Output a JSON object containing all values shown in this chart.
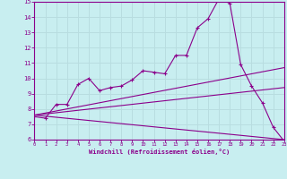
{
  "xlabel": "Windchill (Refroidissement éolien,°C)",
  "xlim": [
    0,
    23
  ],
  "ylim": [
    6,
    15
  ],
  "xticks": [
    0,
    1,
    2,
    3,
    4,
    5,
    6,
    7,
    8,
    9,
    10,
    11,
    12,
    13,
    14,
    15,
    16,
    17,
    18,
    19,
    20,
    21,
    22,
    23
  ],
  "yticks": [
    6,
    7,
    8,
    9,
    10,
    11,
    12,
    13,
    14,
    15
  ],
  "background_color": "#c8eef0",
  "line_color": "#8b008b",
  "grid_color": "#b8dde0",
  "lines": [
    {
      "x": [
        0,
        1,
        2,
        3,
        4,
        5,
        6,
        7,
        8,
        9,
        10,
        11,
        12,
        13,
        14,
        15,
        16,
        17,
        18,
        19,
        20,
        21,
        22,
        23
      ],
      "y": [
        7.5,
        7.4,
        8.3,
        8.3,
        9.6,
        10.0,
        9.2,
        9.4,
        9.5,
        9.9,
        10.5,
        10.4,
        10.3,
        11.5,
        11.5,
        13.3,
        13.9,
        15.2,
        14.9,
        10.9,
        9.5,
        8.4,
        6.8,
        5.9
      ],
      "marker": true
    },
    {
      "x": [
        0,
        23
      ],
      "y": [
        7.6,
        10.7
      ],
      "marker": false
    },
    {
      "x": [
        0,
        23
      ],
      "y": [
        7.6,
        9.4
      ],
      "marker": false
    },
    {
      "x": [
        0,
        23
      ],
      "y": [
        7.6,
        6.0
      ],
      "marker": false
    }
  ]
}
